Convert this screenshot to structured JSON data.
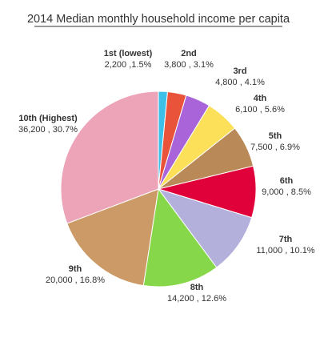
{
  "chart_data": {
    "type": "pie",
    "title": "2014 Median monthly household income per capita",
    "categories": [
      "1st (lowest)",
      "2nd",
      "3rd",
      "4th",
      "5th",
      "6th",
      "7th",
      "8th",
      "9th",
      "10th (Highest)"
    ],
    "values": [
      2200,
      3800,
      4800,
      6100,
      7500,
      9000,
      11000,
      14200,
      20000,
      36200
    ],
    "value_labels": [
      "2,200 ,1.5%",
      "3,800 , 3.1%",
      "4,800 , 4.1%",
      "6,100 , 5.6%",
      "7,500 , 6.9%",
      "9,000 , 8.5%",
      "11,000 , 10.1%",
      "14,200 , 12.6%",
      "20,000 , 16.8%",
      "36,200 , 30.7%"
    ],
    "percentages": [
      1.5,
      3.1,
      4.1,
      5.6,
      6.9,
      8.5,
      10.1,
      12.6,
      16.8,
      30.7
    ],
    "colors": [
      "#3cc0e8",
      "#e8533a",
      "#a864d8",
      "#fce05a",
      "#b98a58",
      "#e0003a",
      "#b3b0dc",
      "#86d84a",
      "#cc9a66",
      "#eda3b8"
    ],
    "legend": "none",
    "start_angle": "12 o'clock",
    "direction": "clockwise"
  }
}
